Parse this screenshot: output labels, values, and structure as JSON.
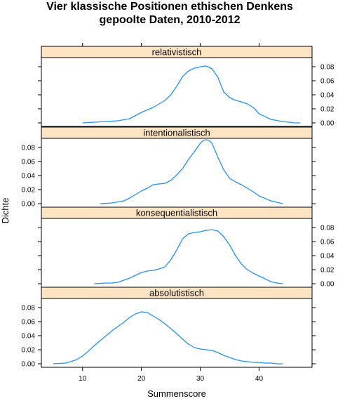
{
  "chart_data": {
    "type": "line",
    "title": "Vier klassische Positionen ethischen Denkens",
    "subtitle": "gepoolte Daten, 2010-2012",
    "xlabel": "Summenscore",
    "ylabel": "Dichte",
    "xlim": [
      3,
      49
    ],
    "ylim": [
      -0.005,
      0.093
    ],
    "xticks": [
      10,
      20,
      30,
      40
    ],
    "yticks": [
      0.0,
      0.02,
      0.04,
      0.06,
      0.08
    ],
    "ytick_labels": [
      "0.00",
      "0.02",
      "0.04",
      "0.06",
      "0.08"
    ],
    "colors": {
      "line": "#1e90ff",
      "strip": "#ffe4c4",
      "frame": "#000000"
    },
    "panels": [
      {
        "name": "relativistisch",
        "y_axis_side": "right",
        "x": [
          10,
          12,
          14,
          16,
          18,
          20,
          22,
          24,
          25,
          26,
          27,
          28,
          29,
          30,
          31,
          32,
          33,
          34,
          35,
          36,
          37,
          38,
          39,
          40,
          42,
          44,
          46,
          47
        ],
        "y": [
          0.0,
          0.001,
          0.002,
          0.003,
          0.006,
          0.015,
          0.022,
          0.032,
          0.04,
          0.052,
          0.066,
          0.074,
          0.078,
          0.08,
          0.081,
          0.077,
          0.065,
          0.044,
          0.036,
          0.032,
          0.03,
          0.027,
          0.022,
          0.013,
          0.005,
          0.002,
          0.0,
          0.0
        ]
      },
      {
        "name": "intentionalistisch",
        "y_axis_side": "left",
        "x": [
          13,
          15,
          17,
          18,
          19,
          20,
          21,
          22,
          23,
          24,
          25,
          26,
          27,
          28,
          29,
          30,
          30.5,
          31,
          31.5,
          32,
          33,
          34,
          35,
          36,
          37,
          38,
          39,
          40,
          42,
          44
        ],
        "y": [
          0.0,
          0.001,
          0.004,
          0.008,
          0.013,
          0.018,
          0.022,
          0.027,
          0.028,
          0.029,
          0.033,
          0.041,
          0.05,
          0.063,
          0.074,
          0.086,
          0.09,
          0.091,
          0.09,
          0.086,
          0.066,
          0.048,
          0.036,
          0.031,
          0.027,
          0.022,
          0.017,
          0.011,
          0.004,
          0.0
        ]
      },
      {
        "name": "konsequentialistisch",
        "y_axis_side": "right",
        "x": [
          12,
          14,
          15,
          16,
          17,
          18,
          19,
          20,
          21,
          22,
          23,
          24,
          25,
          26,
          27,
          28,
          29,
          30,
          31,
          32,
          33,
          34,
          35,
          36,
          37,
          38,
          39,
          40,
          41,
          42,
          43,
          44
        ],
        "y": [
          0.0,
          0.001,
          0.001,
          0.002,
          0.005,
          0.008,
          0.012,
          0.016,
          0.018,
          0.019,
          0.021,
          0.024,
          0.034,
          0.048,
          0.064,
          0.071,
          0.073,
          0.074,
          0.076,
          0.077,
          0.075,
          0.067,
          0.055,
          0.04,
          0.028,
          0.02,
          0.015,
          0.011,
          0.007,
          0.003,
          0.001,
          0.0
        ]
      },
      {
        "name": "absolutistisch",
        "y_axis_side": "left",
        "x": [
          5,
          7,
          8,
          9,
          10,
          11,
          12,
          13,
          14,
          15,
          16,
          17,
          18,
          19,
          20,
          21,
          22,
          23,
          24,
          25,
          26,
          27,
          28,
          29,
          30,
          31,
          32,
          33,
          34,
          35,
          36,
          37,
          38,
          39,
          40,
          41,
          42,
          43,
          44
        ],
        "y": [
          0.0,
          0.001,
          0.003,
          0.006,
          0.011,
          0.018,
          0.026,
          0.033,
          0.04,
          0.047,
          0.053,
          0.059,
          0.066,
          0.071,
          0.074,
          0.073,
          0.068,
          0.063,
          0.057,
          0.05,
          0.043,
          0.035,
          0.028,
          0.023,
          0.021,
          0.02,
          0.019,
          0.016,
          0.012,
          0.009,
          0.006,
          0.004,
          0.003,
          0.002,
          0.002,
          0.001,
          0.001,
          0.0,
          0.0
        ]
      }
    ]
  }
}
